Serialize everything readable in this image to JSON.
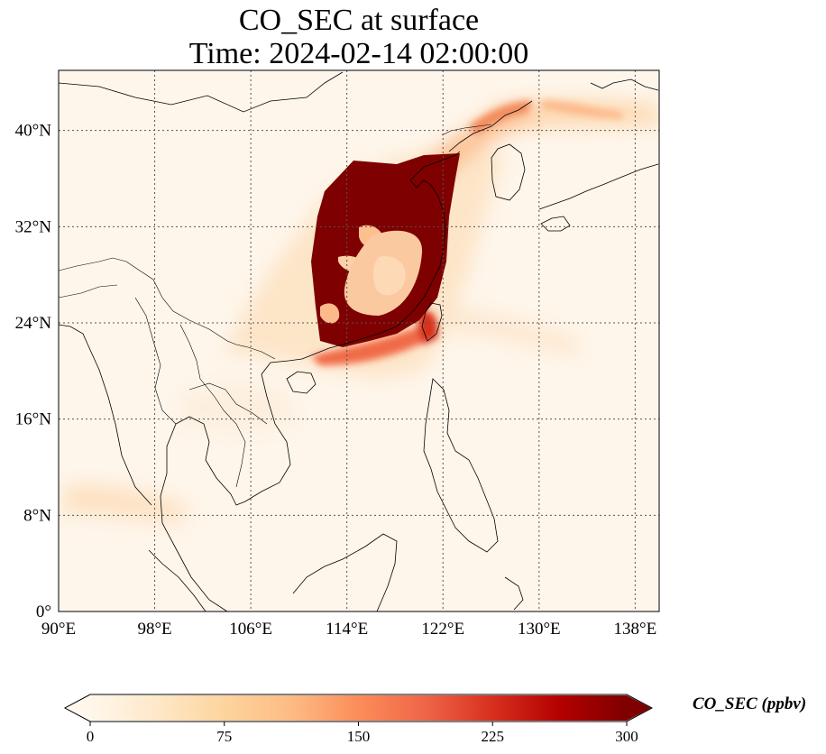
{
  "title": {
    "line1": "CO_SEC at surface",
    "line2": "Time: 2024-02-14 02:00:00"
  },
  "map": {
    "extent": {
      "lon": [
        90,
        140
      ],
      "lat": [
        0,
        45
      ]
    },
    "lon_ticks": [
      {
        "value": 90,
        "label": "90°E"
      },
      {
        "value": 98,
        "label": "98°E"
      },
      {
        "value": 106,
        "label": "106°E"
      },
      {
        "value": 114,
        "label": "114°E"
      },
      {
        "value": 122,
        "label": "122°E"
      },
      {
        "value": 130,
        "label": "130°E"
      },
      {
        "value": 138,
        "label": "138°E"
      }
    ],
    "lat_ticks": [
      {
        "value": 0,
        "label": "0°"
      },
      {
        "value": 8,
        "label": "8°N"
      },
      {
        "value": 16,
        "label": "16°N"
      },
      {
        "value": 24,
        "label": "24°N"
      },
      {
        "value": 32,
        "label": "32°N"
      },
      {
        "value": 40,
        "label": "40°N"
      }
    ],
    "gridlines": "dotted",
    "field": "CO_SEC",
    "colormap": "OrRd"
  },
  "colorbar": {
    "title": "CO_SEC (ppbv)",
    "min": 0,
    "max": 300,
    "extend": "both",
    "ticks": [
      {
        "value": 0,
        "label": "0"
      },
      {
        "value": 75,
        "label": "75"
      },
      {
        "value": 150,
        "label": "150"
      },
      {
        "value": 225,
        "label": "225"
      },
      {
        "value": 300,
        "label": "300"
      }
    ],
    "colors": [
      "#fff7ec",
      "#fee8c8",
      "#fdd49e",
      "#fdbb84",
      "#fc8d59",
      "#ef6548",
      "#d7301f",
      "#b30000",
      "#7f0000"
    ]
  }
}
